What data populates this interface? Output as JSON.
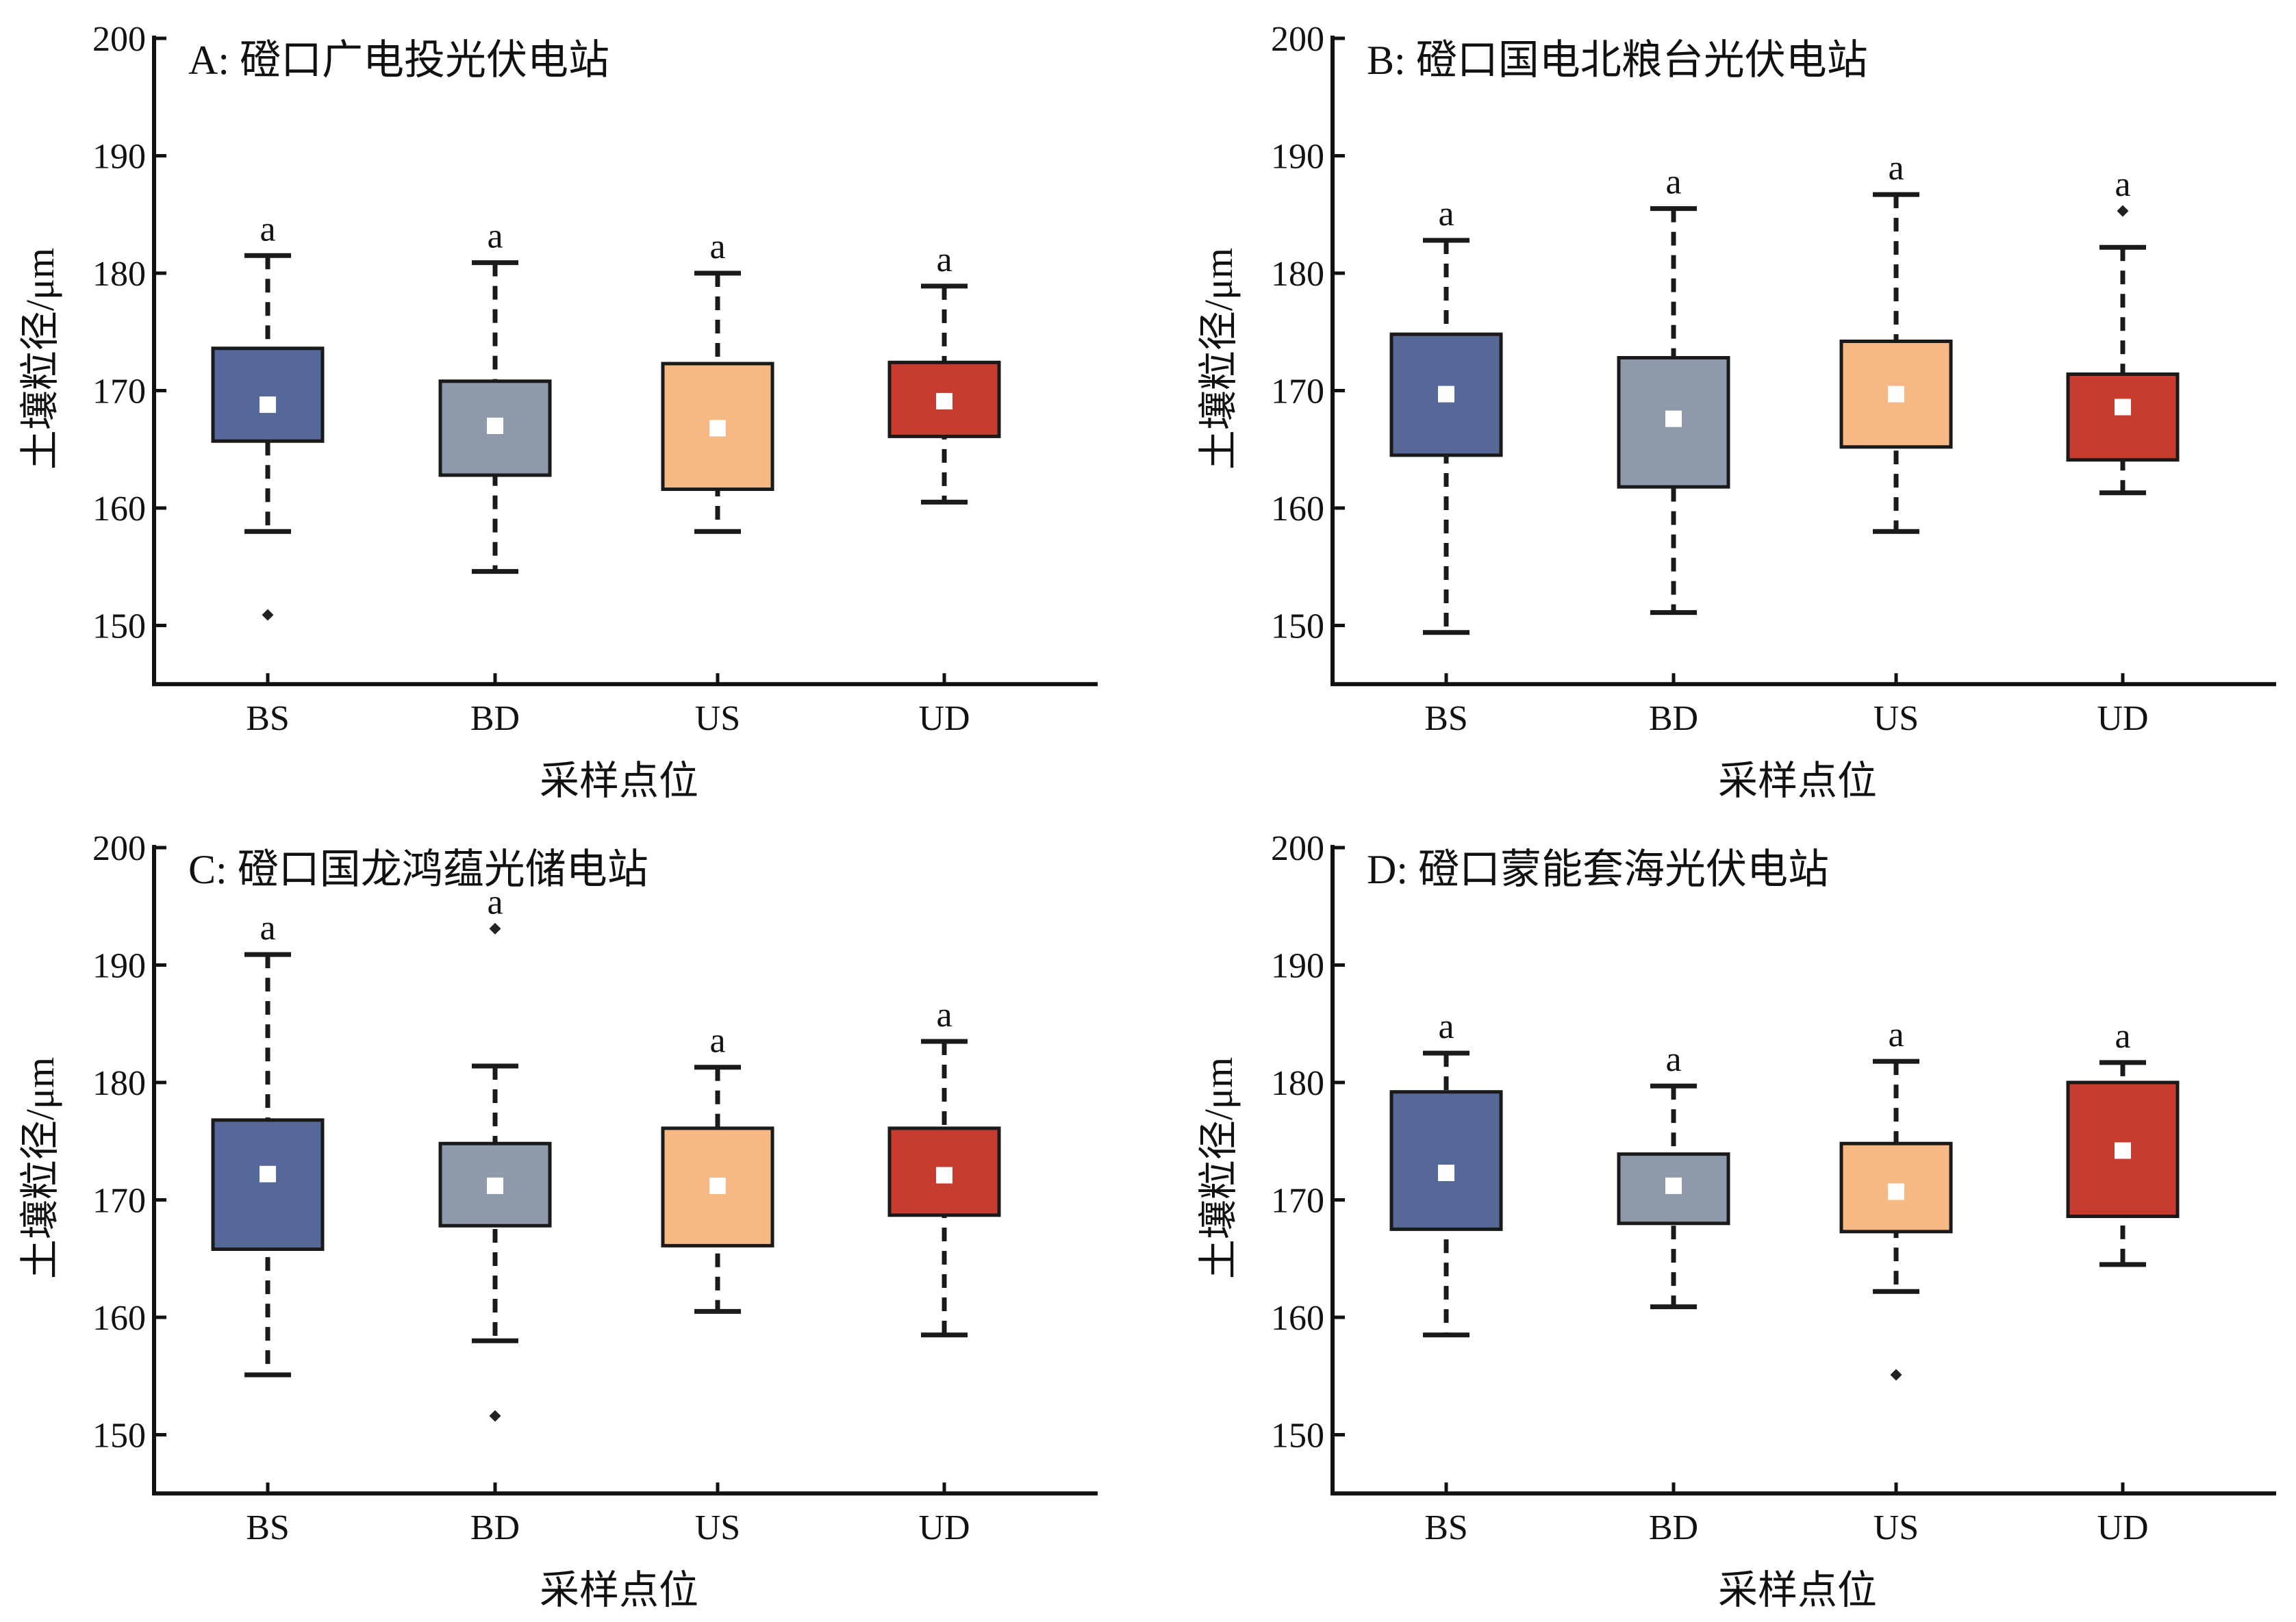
{
  "chart_data": [
    {
      "type": "box",
      "title": "A: 磴口广电投光伏电站",
      "xlabel": "采样点位",
      "ylabel": "土壤粒径/μm",
      "ylim": [
        145,
        200
      ],
      "yticks": [
        150,
        160,
        170,
        180,
        190,
        200
      ],
      "grid": false,
      "categories": [
        "BS",
        "BD",
        "US",
        "UD"
      ],
      "boxes": [
        {
          "category": "BS",
          "whisker_low": 158.0,
          "q1": 165.7,
          "q3": 173.6,
          "whisker_high": 181.5,
          "mean": 168.8,
          "outliers": [
            150.9
          ],
          "letter": "a"
        },
        {
          "category": "BD",
          "whisker_low": 154.6,
          "q1": 162.8,
          "q3": 170.8,
          "whisker_high": 180.9,
          "mean": 167.0,
          "outliers": [],
          "letter": "a"
        },
        {
          "category": "US",
          "whisker_low": 158.0,
          "q1": 161.6,
          "q3": 172.3,
          "whisker_high": 180.0,
          "mean": 166.8,
          "outliers": [],
          "letter": "a"
        },
        {
          "category": "UD",
          "whisker_low": 160.5,
          "q1": 166.1,
          "q3": 172.4,
          "whisker_high": 178.9,
          "mean": 169.1,
          "outliers": [],
          "letter": "a"
        }
      ]
    },
    {
      "type": "box",
      "title": "B: 磴口国电北粮台光伏电站",
      "xlabel": "采样点位",
      "ylabel": "土壤粒径/μm",
      "ylim": [
        145,
        200
      ],
      "yticks": [
        150,
        160,
        170,
        180,
        190,
        200
      ],
      "grid": false,
      "categories": [
        "BS",
        "BD",
        "US",
        "UD"
      ],
      "boxes": [
        {
          "category": "BS",
          "whisker_low": 149.4,
          "q1": 164.5,
          "q3": 174.8,
          "whisker_high": 182.8,
          "mean": 169.7,
          "outliers": [],
          "letter": "a"
        },
        {
          "category": "BD",
          "whisker_low": 151.1,
          "q1": 161.8,
          "q3": 172.8,
          "whisker_high": 185.5,
          "mean": 167.6,
          "outliers": [],
          "letter": "a"
        },
        {
          "category": "US",
          "whisker_low": 158.0,
          "q1": 165.2,
          "q3": 174.2,
          "whisker_high": 186.7,
          "mean": 169.7,
          "outliers": [],
          "letter": "a"
        },
        {
          "category": "UD",
          "whisker_low": 161.3,
          "q1": 164.1,
          "q3": 171.4,
          "whisker_high": 182.2,
          "mean": 168.6,
          "outliers": [
            185.3
          ],
          "letter": "a"
        }
      ]
    },
    {
      "type": "box",
      "title": "C: 磴口国龙鸿蕴光储电站",
      "xlabel": "采样点位",
      "ylabel": "土壤粒径/μm",
      "ylim": [
        145,
        200
      ],
      "yticks": [
        150,
        160,
        170,
        180,
        190,
        200
      ],
      "grid": false,
      "categories": [
        "BS",
        "BD",
        "US",
        "UD"
      ],
      "boxes": [
        {
          "category": "BS",
          "whisker_low": 155.1,
          "q1": 165.8,
          "q3": 176.8,
          "whisker_high": 190.9,
          "mean": 172.2,
          "outliers": [],
          "letter": "a"
        },
        {
          "category": "BD",
          "whisker_low": 158.0,
          "q1": 167.8,
          "q3": 174.8,
          "whisker_high": 181.4,
          "mean": 171.2,
          "outliers": [
            193.1,
            151.6
          ],
          "letter": "a"
        },
        {
          "category": "US",
          "whisker_low": 160.5,
          "q1": 166.1,
          "q3": 176.1,
          "whisker_high": 181.3,
          "mean": 171.2,
          "outliers": [],
          "letter": "a"
        },
        {
          "category": "UD",
          "whisker_low": 158.5,
          "q1": 168.7,
          "q3": 176.1,
          "whisker_high": 183.5,
          "mean": 172.1,
          "outliers": [],
          "letter": "a"
        }
      ]
    },
    {
      "type": "box",
      "title": "D: 磴口蒙能套海光伏电站",
      "xlabel": "采样点位",
      "ylabel": "土壤粒径/μm",
      "ylim": [
        145,
        200
      ],
      "yticks": [
        150,
        160,
        170,
        180,
        190,
        200
      ],
      "grid": false,
      "categories": [
        "BS",
        "BD",
        "US",
        "UD"
      ],
      "boxes": [
        {
          "category": "BS",
          "whisker_low": 158.5,
          "q1": 167.5,
          "q3": 179.2,
          "whisker_high": 182.5,
          "mean": 172.3,
          "outliers": [],
          "letter": "a"
        },
        {
          "category": "BD",
          "whisker_low": 160.9,
          "q1": 168.0,
          "q3": 173.9,
          "whisker_high": 179.7,
          "mean": 171.2,
          "outliers": [],
          "letter": "a"
        },
        {
          "category": "US",
          "whisker_low": 162.2,
          "q1": 167.3,
          "q3": 174.8,
          "whisker_high": 181.8,
          "mean": 170.7,
          "outliers": [
            155.1
          ],
          "letter": "a"
        },
        {
          "category": "UD",
          "whisker_low": 164.5,
          "q1": 168.6,
          "q3": 180.0,
          "whisker_high": 181.7,
          "mean": 174.2,
          "outliers": [],
          "letter": "a"
        }
      ]
    }
  ],
  "colors": {
    "BS": "#56689a",
    "BD": "#8e9aab",
    "US": "#f6b984",
    "UD": "#c83c2f",
    "mean_marker": "#ffffff",
    "outline": "#1a1a1a"
  }
}
